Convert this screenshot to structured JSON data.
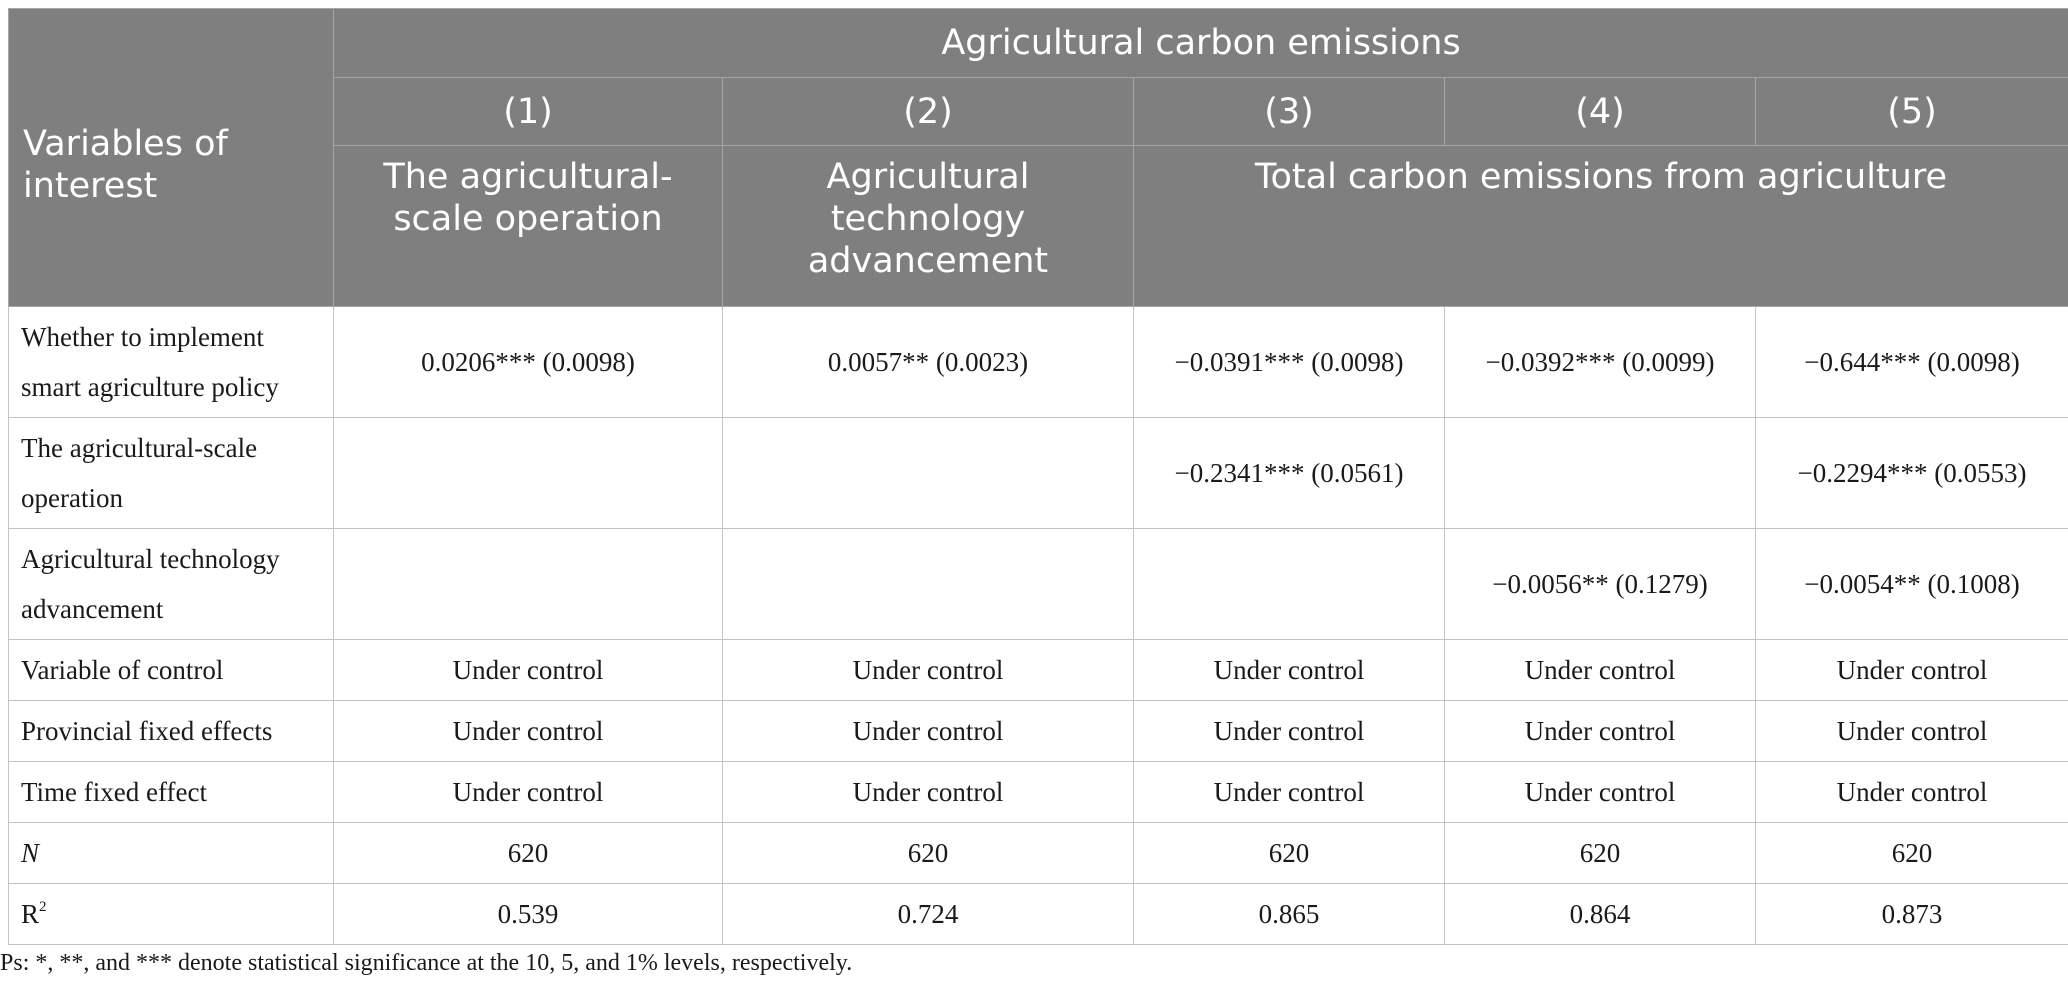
{
  "header": {
    "corner": "Variables of interest",
    "group": "Agricultural carbon emissions",
    "columns": [
      "(1)",
      "(2)",
      "(3)",
      "(4)",
      "(5)"
    ],
    "dependent": {
      "c1": "The agricultural-scale operation",
      "c2": "Agricultural technology advancement",
      "c345": "Total carbon emissions from agriculture"
    }
  },
  "rows": [
    {
      "label": "Whether to implement smart agriculture policy",
      "cells": [
        "0.0206*** (0.0098)",
        "0.0057** (0.0023)",
        "−0.0391*** (0.0098)",
        "−0.0392*** (0.0099)",
        "−0.644*** (0.0098)"
      ]
    },
    {
      "label": "The agricultural-scale operation",
      "cells": [
        "",
        "",
        "−0.2341*** (0.0561)",
        "",
        "−0.2294*** (0.0553)"
      ]
    },
    {
      "label": "Agricultural technology advancement",
      "cells": [
        "",
        "",
        "",
        "−0.0056** (0.1279)",
        "−0.0054** (0.1008)"
      ]
    },
    {
      "label": "Variable of control",
      "cells": [
        "Under control",
        "Under control",
        "Under control",
        "Under control",
        "Under control"
      ]
    },
    {
      "label": "Provincial fixed effects",
      "cells": [
        "Under control",
        "Under control",
        "Under control",
        "Under control",
        "Under control"
      ]
    },
    {
      "label": "Time fixed effect",
      "cells": [
        "Under control",
        "Under control",
        "Under control",
        "Under control",
        "Under control"
      ]
    },
    {
      "label": "N",
      "cells": [
        "620",
        "620",
        "620",
        "620",
        "620"
      ]
    },
    {
      "label_base": "R",
      "label_sup": "2",
      "cells": [
        "0.539",
        "0.724",
        "0.865",
        "0.864",
        "0.873"
      ]
    }
  ],
  "note": "Ps: *, **, and *** denote statistical significance at the 10, 5, and 1% levels, respectively.",
  "colors": {
    "header_bg": "#7f7f7f",
    "header_text": "#ffffff",
    "grid": "#c4c4c4"
  }
}
